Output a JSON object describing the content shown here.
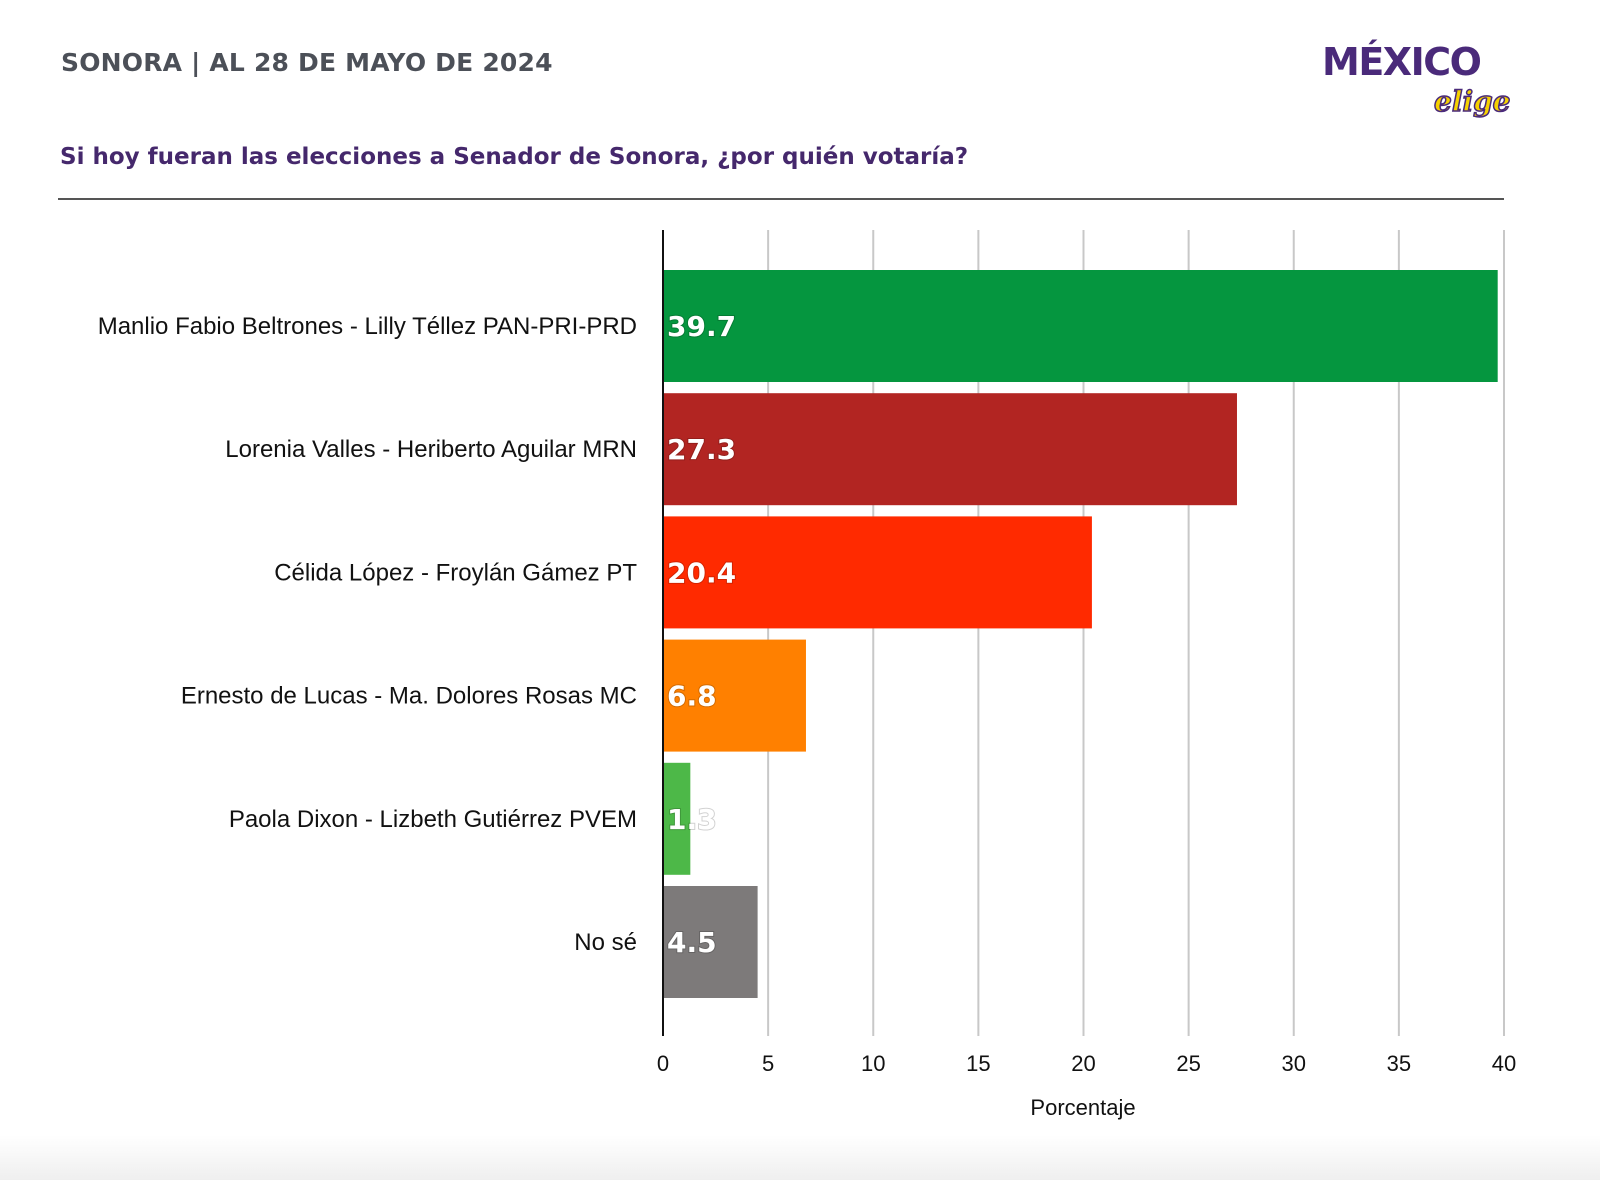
{
  "header": {
    "title": "SONORA | AL 28 DE MAYO DE 2024",
    "logo_main": "MÉXICO",
    "logo_sub": "elige"
  },
  "question": "Si hoy fueran las elecciones a Senador de Sonora, ¿por quién votaría?",
  "colors": {
    "brand_purple": "#4a2a7a",
    "brand_yellow": "#f5d100"
  },
  "chart_data": {
    "type": "bar",
    "orientation": "horizontal",
    "title": "Si hoy fueran las elecciones a Senador de Sonora, ¿por quién votaría?",
    "xlabel": "Porcentaje",
    "ylabel": "",
    "xlim": [
      0,
      40
    ],
    "xticks": [
      0,
      5,
      10,
      15,
      20,
      25,
      30,
      35,
      40
    ],
    "grid": true,
    "categories": [
      "Manlio Fabio Beltrones - Lilly Téllez PAN-PRI-PRD",
      "Lorenia Valles - Heriberto Aguilar MRN",
      "Célida López - Froylán Gámez PT",
      "Ernesto de Lucas - Ma. Dolores Rosas MC",
      "Paola Dixon - Lizbeth Gutiérrez PVEM",
      "No sé"
    ],
    "values": [
      39.7,
      27.3,
      20.4,
      6.8,
      1.3,
      4.5
    ],
    "value_labels": [
      "39.7",
      "27.3",
      "20.4",
      "6.8",
      "1.3",
      "4.5"
    ],
    "bar_colors": [
      "#05963f",
      "#b22522",
      "#ff2a00",
      "#ff8000",
      "#4db848",
      "#7d7a7a"
    ]
  }
}
